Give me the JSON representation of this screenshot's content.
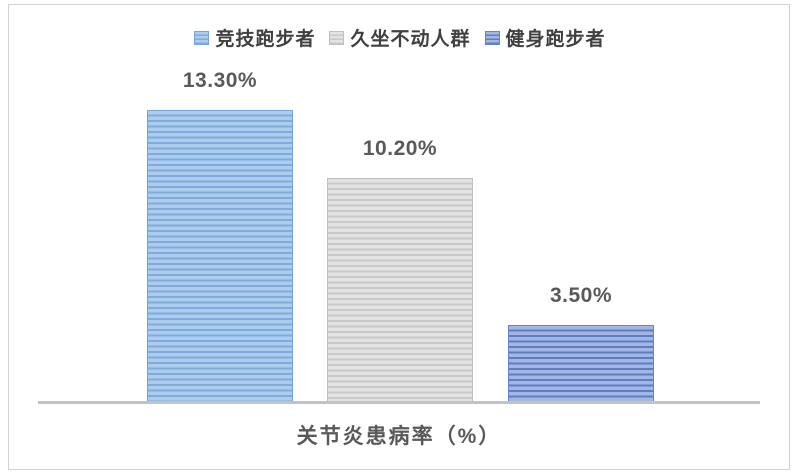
{
  "legend": {
    "items": [
      {
        "label": "竞技跑步者",
        "swatch_icon": "striped-square-lightblue"
      },
      {
        "label": "久坐不动人群",
        "swatch_icon": "striped-square-gray"
      },
      {
        "label": "健身跑步者",
        "swatch_icon": "striped-square-blue"
      }
    ]
  },
  "chart_data": {
    "type": "bar",
    "title": "",
    "categories": [
      "竞技跑步者",
      "久坐不动人群",
      "健身跑步者"
    ],
    "values": [
      13.3,
      10.2,
      3.5
    ],
    "value_labels": [
      "13.30%",
      "10.20%",
      "3.50%"
    ],
    "xlabel": "关节炎患病率（%）",
    "ylabel": "",
    "ylim": [
      0,
      13.3
    ],
    "grid": false,
    "legend_position": "top",
    "bar_fill_pattern": "horizontal-stripes"
  },
  "colors": {
    "series": [
      {
        "light": "#AECDED",
        "dark": "#7FACDF",
        "border": "#74A4DA"
      },
      {
        "light": "#E3E3E3",
        "dark": "#C9C9C9",
        "border": "#BFBFBF"
      },
      {
        "light": "#A3B7E1",
        "dark": "#5E7DC8",
        "border": "#6484CD"
      }
    ],
    "axis_line": "#C3C3C3",
    "label_text": "#595959",
    "legend_text": "#404040",
    "frame_border": "#D2D2D2"
  }
}
